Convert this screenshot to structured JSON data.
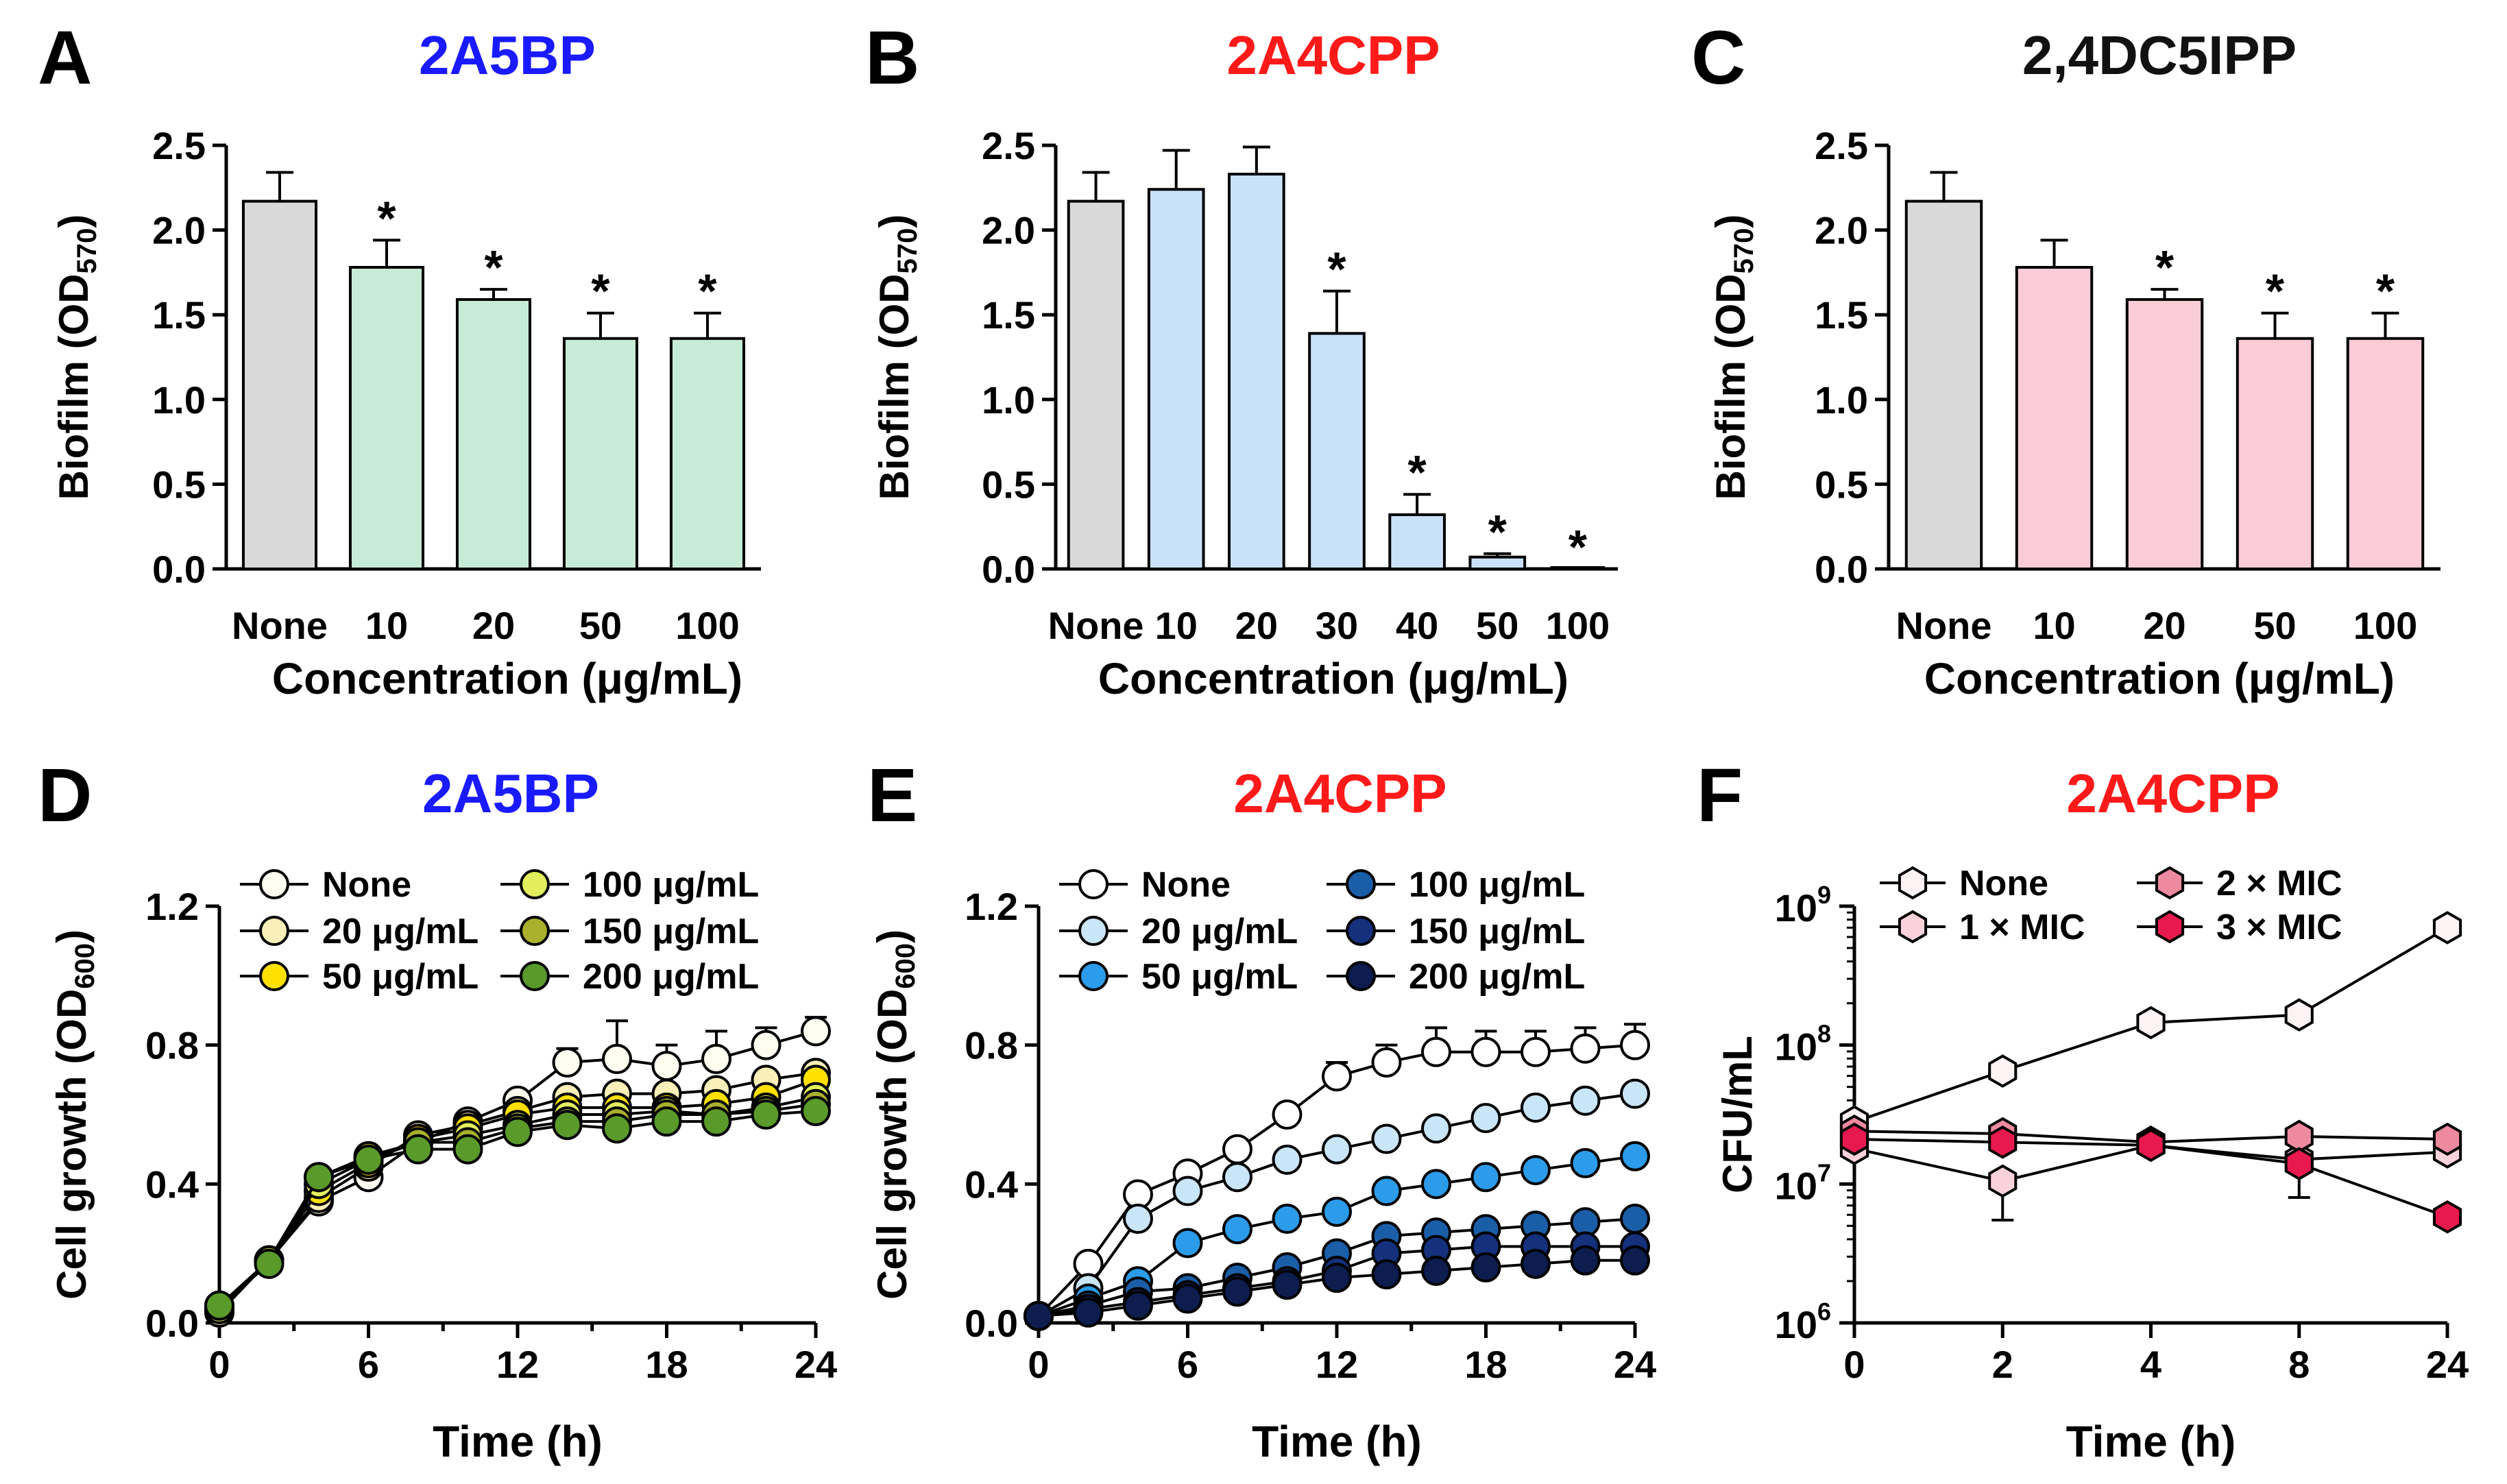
{
  "chart_data": [
    {
      "panel": "A",
      "title": "2A5BP",
      "title_color": "#1a1aff",
      "type": "bar",
      "categories": [
        "None",
        "10",
        "20",
        "50",
        "100"
      ],
      "values": [
        2.17,
        1.78,
        1.59,
        1.36,
        1.36
      ],
      "errors": [
        0.17,
        0.16,
        0.06,
        0.15,
        0.15
      ],
      "significant": [
        false,
        true,
        true,
        true,
        true
      ],
      "bar_colors": [
        "#d9d9d9",
        "#c6ebd6",
        "#c6ebd6",
        "#c6ebd6",
        "#c6ebd6"
      ],
      "xlabel": "Concentration (μg/mL)",
      "ylabel_main": "Biofilm (OD",
      "ylabel_sub": "570",
      "ylabel_end": ")",
      "ylim": [
        0,
        2.5
      ],
      "yticks": [
        "0.0",
        "0.5",
        "1.0",
        "1.5",
        "2.0",
        "2.5"
      ],
      "significance_marker": "*"
    },
    {
      "panel": "B",
      "title": "2A4CPP",
      "title_color": "#ff1a1a",
      "type": "bar",
      "categories": [
        "None",
        "10",
        "20",
        "30",
        "40",
        "50",
        "100"
      ],
      "values": [
        2.17,
        2.24,
        2.33,
        1.39,
        0.32,
        0.07,
        0.0
      ],
      "errors": [
        0.17,
        0.23,
        0.16,
        0.25,
        0.12,
        0.02,
        0.0
      ],
      "significant": [
        false,
        false,
        false,
        true,
        true,
        true,
        true
      ],
      "bar_colors": [
        "#d9d9d9",
        "#c9e2fa",
        "#c9e2fa",
        "#c9e2fa",
        "#c9e2fa",
        "#c9e2fa",
        "#c9e2fa"
      ],
      "xlabel": "Concentration (μg/mL)",
      "ylabel_main": "Biofilm (OD",
      "ylabel_sub": "570",
      "ylabel_end": ")",
      "ylim": [
        0,
        2.5
      ],
      "yticks": [
        "0.0",
        "0.5",
        "1.0",
        "1.5",
        "2.0",
        "2.5"
      ],
      "significance_marker": "*"
    },
    {
      "panel": "C",
      "title": "2,4DC5IPP",
      "title_color": "#111111",
      "type": "bar",
      "categories": [
        "None",
        "10",
        "20",
        "50",
        "100"
      ],
      "values": [
        2.17,
        1.78,
        1.59,
        1.36,
        1.36
      ],
      "errors": [
        0.17,
        0.16,
        0.06,
        0.15,
        0.15
      ],
      "significant": [
        false,
        false,
        true,
        true,
        true
      ],
      "bar_colors": [
        "#d9d9d9",
        "#f9ccd8",
        "#f9ccd8",
        "#f9ccd8",
        "#f9ccd8"
      ],
      "xlabel": "Concentration (μg/mL)",
      "ylabel_main": "Biofilm (OD",
      "ylabel_sub": "570",
      "ylabel_end": ")",
      "ylim": [
        0,
        2.5
      ],
      "yticks": [
        "0.0",
        "0.5",
        "1.0",
        "1.5",
        "2.0",
        "2.5"
      ],
      "significance_marker": "*"
    },
    {
      "panel": "D",
      "title": "2A5BP",
      "title_color": "#1a1aff",
      "type": "line",
      "x": [
        0,
        2,
        4,
        6,
        8,
        10,
        12,
        14,
        16,
        18,
        20,
        22,
        24
      ],
      "series": [
        {
          "name": "None",
          "color": "#fdfdf0",
          "values": [
            0.03,
            0.18,
            0.35,
            0.42,
            0.52,
            0.58,
            0.64,
            0.75,
            0.76,
            0.74,
            0.76,
            0.8,
            0.84
          ],
          "errors": [
            0,
            0,
            0,
            0,
            0,
            0,
            0,
            0.04,
            0.11,
            0.06,
            0.08,
            0.05,
            0.04
          ]
        },
        {
          "name": "20 μg/mL",
          "color": "#f8f0b8",
          "values": [
            0.03,
            0.18,
            0.36,
            0.45,
            0.54,
            0.57,
            0.61,
            0.65,
            0.66,
            0.66,
            0.67,
            0.7,
            0.72
          ],
          "errors": []
        },
        {
          "name": "50 μg/mL",
          "color": "#ffe000",
          "values": [
            0.04,
            0.18,
            0.38,
            0.46,
            0.53,
            0.56,
            0.6,
            0.62,
            0.62,
            0.62,
            0.63,
            0.65,
            0.7
          ],
          "errors": []
        },
        {
          "name": "100 μg/mL",
          "color": "#e2ee5c",
          "values": [
            0.04,
            0.18,
            0.4,
            0.47,
            0.52,
            0.54,
            0.57,
            0.6,
            0.6,
            0.61,
            0.6,
            0.62,
            0.65
          ],
          "errors": []
        },
        {
          "name": "150 μg/mL",
          "color": "#a8b02c",
          "values": [
            0.05,
            0.18,
            0.42,
            0.48,
            0.52,
            0.52,
            0.56,
            0.58,
            0.58,
            0.6,
            0.6,
            0.61,
            0.63
          ],
          "errors": []
        },
        {
          "name": "200 μg/mL",
          "color": "#5a9a2a",
          "values": [
            0.05,
            0.17,
            0.42,
            0.47,
            0.5,
            0.5,
            0.55,
            0.57,
            0.56,
            0.58,
            0.58,
            0.6,
            0.61
          ],
          "errors": []
        }
      ],
      "xlabel": "Time (h)",
      "ylabel_main": "Cell growth (OD",
      "ylabel_sub": "600",
      "ylabel_end": ")",
      "xlim": [
        0,
        24
      ],
      "ylim": [
        0,
        1.2
      ],
      "xticks": [
        "0",
        "6",
        "12",
        "18",
        "24"
      ],
      "yticks": [
        "0.0",
        "0.4",
        "0.8",
        "1.2"
      ]
    },
    {
      "panel": "E",
      "title": "2A4CPP",
      "title_color": "#ff1a1a",
      "type": "line",
      "x": [
        0,
        2,
        4,
        6,
        8,
        10,
        12,
        14,
        16,
        18,
        20,
        22,
        24
      ],
      "series": [
        {
          "name": "None",
          "color": "#ffffff",
          "values": [
            0.02,
            0.17,
            0.37,
            0.43,
            0.5,
            0.6,
            0.71,
            0.75,
            0.78,
            0.78,
            0.78,
            0.79,
            0.8
          ],
          "errors": [
            0,
            0,
            0,
            0,
            0,
            0,
            0.04,
            0.05,
            0.07,
            0.06,
            0.06,
            0.06,
            0.06
          ]
        },
        {
          "name": "20 μg/mL",
          "color": "#c9e6f8",
          "values": [
            0.02,
            0.1,
            0.3,
            0.38,
            0.42,
            0.47,
            0.5,
            0.53,
            0.56,
            0.59,
            0.62,
            0.64,
            0.66
          ],
          "errors": []
        },
        {
          "name": "50 μg/mL",
          "color": "#2c9cea",
          "values": [
            0.02,
            0.07,
            0.12,
            0.23,
            0.27,
            0.3,
            0.32,
            0.38,
            0.4,
            0.42,
            0.44,
            0.46,
            0.48
          ],
          "errors": []
        },
        {
          "name": "100 μg/mL",
          "color": "#1b5ea8",
          "values": [
            0.02,
            0.05,
            0.09,
            0.1,
            0.13,
            0.16,
            0.2,
            0.25,
            0.26,
            0.27,
            0.28,
            0.29,
            0.3
          ],
          "errors": []
        },
        {
          "name": "150 μg/mL",
          "color": "#15307c",
          "values": [
            0.02,
            0.04,
            0.06,
            0.08,
            0.1,
            0.12,
            0.15,
            0.2,
            0.21,
            0.22,
            0.22,
            0.22,
            0.22
          ],
          "errors": []
        },
        {
          "name": "200 μg/mL",
          "color": "#0c1d4e",
          "values": [
            0.02,
            0.03,
            0.05,
            0.07,
            0.09,
            0.11,
            0.13,
            0.14,
            0.15,
            0.16,
            0.17,
            0.18,
            0.18
          ],
          "errors": []
        }
      ],
      "xlabel": "Time (h)",
      "ylabel_main": "Cell growth (OD",
      "ylabel_sub": "600",
      "ylabel_end": ")",
      "xlim": [
        0,
        24
      ],
      "ylim": [
        0,
        1.2
      ],
      "xticks": [
        "0",
        "6",
        "12",
        "18",
        "24"
      ],
      "yticks": [
        "0.0",
        "0.4",
        "0.8",
        "1.2"
      ]
    },
    {
      "panel": "F",
      "title": "2A4CPP",
      "title_color": "#ff1a1a",
      "type": "line",
      "scale": "log",
      "categories": [
        "0",
        "2",
        "4",
        "8",
        "24"
      ],
      "series": [
        {
          "name": "None",
          "color": "#fdf2f4",
          "values": [
            28000000.0,
            65000000.0,
            145000000.0,
            165000000.0,
            700000000.0
          ],
          "errors_low": [
            0,
            0,
            0,
            0,
            0
          ],
          "errors_high": [
            0,
            0,
            0,
            0,
            0
          ]
        },
        {
          "name": "1 × MIC",
          "color": "#fad2dc",
          "values": [
            18000000.0,
            10500000.0,
            19000000.0,
            15000000.0,
            17000000.0
          ],
          "errors_low": [
            0,
            5000000.0,
            0,
            7000000.0,
            0
          ],
          "errors_high": [
            0,
            0,
            0,
            0,
            0
          ]
        },
        {
          "name": "2 × MIC",
          "color": "#ee8aa0",
          "values": [
            24000000.0,
            23000000.0,
            20000000.0,
            22000000.0,
            21000000.0
          ],
          "errors_low": [
            0,
            0,
            0,
            0,
            0
          ],
          "errors_high": [
            0,
            0,
            0,
            0,
            0
          ]
        },
        {
          "name": "3 × MIC",
          "color": "#e8194e",
          "values": [
            21000000.0,
            20000000.0,
            19000000.0,
            14000000.0,
            5800000.0
          ],
          "errors_low": [
            0,
            0,
            0,
            0,
            0
          ],
          "errors_high": [
            0,
            0,
            0,
            0,
            0
          ]
        }
      ],
      "xlabel": "Time (h)",
      "ylabel": "CFU/mL",
      "ylim": [
        1000000.0,
        1000000000.0
      ],
      "ytick_base": "10",
      "ytick_exps": [
        "6",
        "7",
        "8",
        "9"
      ]
    }
  ]
}
